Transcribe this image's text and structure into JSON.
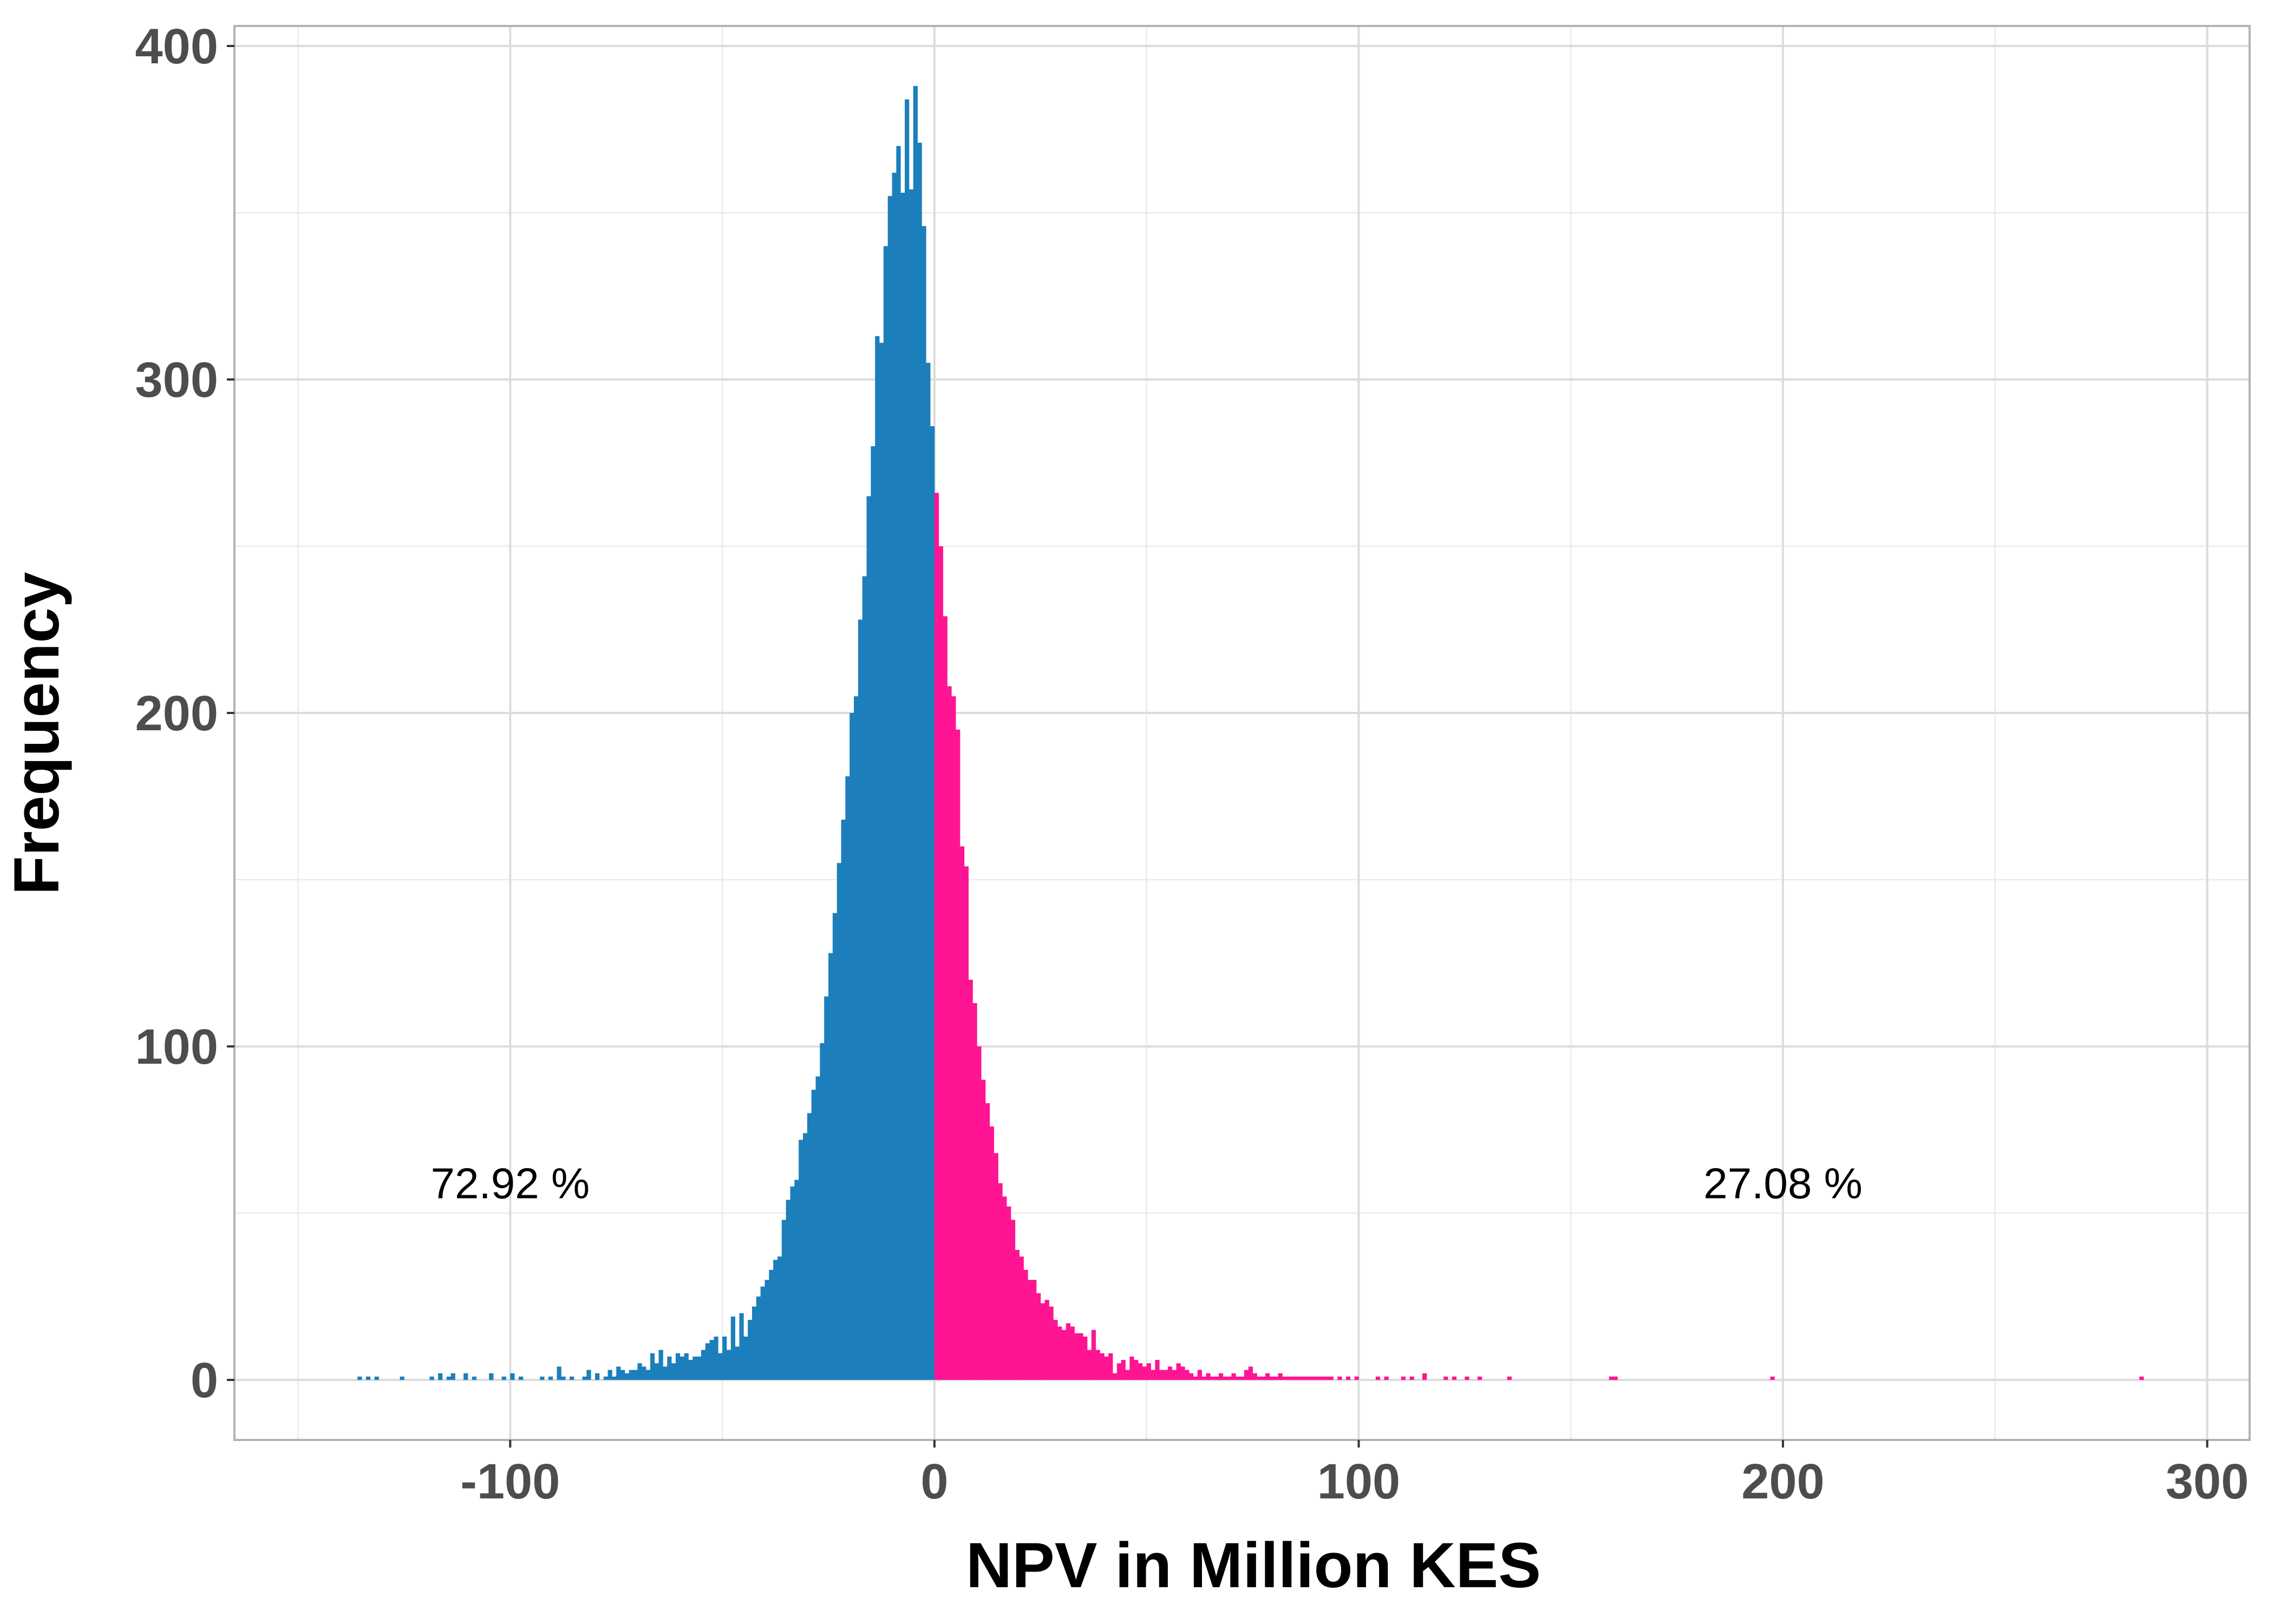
{
  "chart_data": {
    "type": "bar",
    "title": "",
    "xlabel": "NPV in Million KES",
    "ylabel": "Frequency",
    "xlim": [
      -165,
      310
    ],
    "ylim": [
      -18,
      406
    ],
    "x_ticks": [
      -100,
      0,
      100,
      200,
      300
    ],
    "x_tick_labels": [
      "-100",
      "0",
      "100",
      "200",
      "300"
    ],
    "y_ticks": [
      0,
      100,
      200,
      300,
      400
    ],
    "y_tick_labels": [
      "0",
      "100",
      "200",
      "300",
      "400"
    ],
    "grid": true,
    "bin_width": 1,
    "series": [
      {
        "color": "#1c7fbc",
        "x": [
          -136,
          -134,
          -132,
          -126,
          -119,
          -117,
          -115,
          -114,
          -111,
          -109,
          -105,
          -102,
          -100,
          -98,
          -93,
          -91,
          -89,
          -88,
          -86,
          -83,
          -82,
          -80,
          -78,
          -77,
          -76,
          -75,
          -74,
          -73,
          -72,
          -71,
          -70,
          -69,
          -68,
          -67,
          -66,
          -65,
          -64,
          -63,
          -62,
          -61,
          -60,
          -59,
          -58,
          -57,
          -56,
          -55,
          -54,
          -53,
          -52,
          -51,
          -50,
          -49,
          -48,
          -47,
          -46,
          -45,
          -44,
          -43,
          -42,
          -41,
          -40,
          -39,
          -38,
          -37,
          -36,
          -35,
          -34,
          -33,
          -32,
          -31,
          -30,
          -29,
          -28,
          -27,
          -26,
          -25,
          -24,
          -23,
          -22,
          -21,
          -20,
          -19,
          -18,
          -17,
          -16,
          -15,
          -14,
          -13,
          -12,
          -11,
          -10,
          -9,
          -8,
          -7,
          -6,
          -5,
          -4,
          -3,
          -2,
          -1
        ],
        "values": [
          1,
          1,
          1,
          1,
          1,
          2,
          1,
          2,
          2,
          1,
          2,
          1,
          2,
          1,
          1,
          1,
          4,
          1,
          1,
          1,
          3,
          2,
          1,
          3,
          1,
          4,
          3,
          2,
          3,
          3,
          5,
          4,
          3,
          8,
          5,
          9,
          4,
          7,
          5,
          8,
          7,
          8,
          6,
          7,
          7,
          9,
          11,
          12,
          13,
          8,
          13,
          9,
          19,
          10,
          20,
          13,
          18,
          22,
          25,
          28,
          30,
          33,
          36,
          37,
          48,
          54,
          58,
          60,
          72,
          74,
          80,
          87,
          91,
          101,
          115,
          128,
          140,
          155,
          168,
          181,
          200,
          205,
          228,
          241,
          265,
          280,
          313,
          311,
          340,
          355,
          362,
          370,
          356,
          384,
          357,
          388,
          371,
          346,
          305,
          286
        ]
      },
      {
        "color": "#ff1493",
        "x": [
          0,
          1,
          2,
          3,
          4,
          5,
          6,
          7,
          8,
          9,
          10,
          11,
          12,
          13,
          14,
          15,
          16,
          17,
          18,
          19,
          20,
          21,
          22,
          23,
          24,
          25,
          26,
          27,
          28,
          29,
          30,
          31,
          32,
          33,
          34,
          35,
          36,
          37,
          38,
          39,
          40,
          41,
          42,
          43,
          44,
          45,
          46,
          47,
          48,
          49,
          50,
          51,
          52,
          53,
          54,
          55,
          56,
          57,
          58,
          59,
          60,
          61,
          62,
          63,
          64,
          65,
          66,
          67,
          68,
          69,
          70,
          71,
          72,
          73,
          74,
          75,
          76,
          77,
          78,
          79,
          80,
          81,
          82,
          83,
          84,
          85,
          86,
          87,
          88,
          89,
          90,
          91,
          92,
          93,
          95,
          97,
          99,
          104,
          106,
          110,
          112,
          115,
          120,
          122,
          125,
          128,
          135,
          159,
          160,
          197,
          284
        ],
        "values": [
          266,
          250,
          229,
          208,
          205,
          195,
          160,
          154,
          120,
          113,
          100,
          90,
          83,
          76,
          68,
          59,
          55,
          52,
          48,
          39,
          37,
          33,
          30,
          30,
          26,
          23,
          24,
          22,
          18,
          16,
          15,
          17,
          16,
          14,
          14,
          13,
          9,
          15,
          9,
          8,
          7,
          8,
          2,
          5,
          6,
          3,
          7,
          6,
          5,
          4,
          5,
          3,
          6,
          3,
          3,
          4,
          3,
          5,
          4,
          3,
          2,
          1,
          3,
          1,
          2,
          1,
          1,
          2,
          1,
          1,
          2,
          1,
          1,
          3,
          4,
          2,
          1,
          1,
          2,
          1,
          1,
          2,
          1,
          1,
          1,
          1,
          1,
          1,
          1,
          1,
          1,
          1,
          1,
          1,
          1,
          1,
          1,
          1,
          1,
          1,
          1,
          2,
          1,
          1,
          1,
          1,
          1,
          1,
          1,
          1,
          1
        ]
      }
    ],
    "annotations": [
      {
        "x": -100,
        "y": 59,
        "text": "72.92 %"
      },
      {
        "x": 200,
        "y": 59,
        "text": "27.08 %"
      }
    ]
  }
}
